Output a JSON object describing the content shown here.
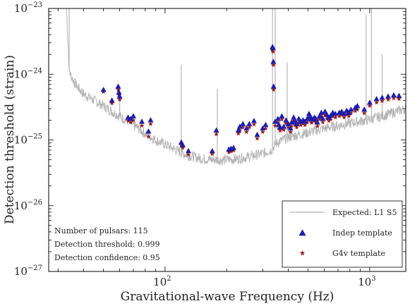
{
  "chart_data": {
    "type": "scatter",
    "title": "",
    "xlabel": "Gravitational-wave Frequency (Hz)",
    "ylabel": "Detection threshold (strain)",
    "x_scale": "log",
    "y_scale": "log",
    "xlim": [
      27,
      1500
    ],
    "ylim": [
      1e-27,
      1e-23
    ],
    "grid": false,
    "legend_position": "bottom-right",
    "x_ticks": [
      {
        "value": 100,
        "base": "10",
        "exp": "2"
      },
      {
        "value": 1000,
        "base": "10",
        "exp": "3"
      }
    ],
    "y_ticks": [
      {
        "value": 1e-27,
        "base": "10",
        "exp": "−27"
      },
      {
        "value": 1e-26,
        "base": "10",
        "exp": "−26"
      },
      {
        "value": 1e-25,
        "base": "10",
        "exp": "−25"
      },
      {
        "value": 1e-24,
        "base": "10",
        "exp": "−24"
      },
      {
        "value": 1e-23,
        "base": "10",
        "exp": "−23"
      }
    ],
    "colors": {
      "expected": "#b5b5b5",
      "indep": "#1f1fbf",
      "g4v": "#a01818"
    },
    "series": [
      {
        "name": "Expected: L1 S5",
        "kind": "line",
        "color": "#b5b5b5",
        "x": [
          33,
          34,
          36,
          38,
          40,
          45,
          50,
          55,
          60,
          70,
          80,
          90,
          100,
          110,
          120,
          130,
          150,
          170,
          200,
          230,
          260,
          300,
          330,
          350,
          400,
          500,
          600,
          700,
          800,
          1000,
          1200,
          1500
        ],
        "y": [
          1e-23,
          1.1e-24,
          7.5e-25,
          6e-25,
          5e-25,
          4e-25,
          3.3e-25,
          2.7e-25,
          2.3e-25,
          1.7e-25,
          1.25e-25,
          1e-25,
          8.5e-26,
          7.4e-26,
          6.4e-26,
          5.8e-26,
          5.2e-26,
          5e-26,
          5e-26,
          5.2e-26,
          5.6e-26,
          6.2e-26,
          7e-26,
          9e-26,
          1.1e-25,
          1.3e-25,
          1.5e-25,
          1.65e-25,
          1.8e-25,
          2.05e-25,
          2.4e-25,
          3e-25
        ]
      },
      {
        "name": "Indep template",
        "kind": "scatter",
        "marker": "triangle",
        "color": "#1f1fbf",
        "x": [
          50,
          55,
          59,
          59.5,
          60,
          66,
          68,
          70,
          77,
          83,
          85,
          120,
          122,
          130,
          170,
          178,
          205,
          210,
          216,
          228,
          232,
          240,
          250,
          258,
          272,
          282,
          300,
          310,
          335,
          337,
          338,
          339,
          345,
          356,
          360,
          365,
          372,
          380,
          390,
          400,
          410,
          415,
          425,
          432,
          440,
          450,
          460,
          472,
          482,
          495,
          505,
          512,
          520,
          536,
          545,
          555,
          568,
          580,
          590,
          605,
          618,
          632,
          645,
          660,
          680,
          710,
          730,
          750,
          772,
          790,
          810,
          850,
          870,
          940,
          1000,
          1080,
          1150,
          1230,
          1310,
          1390
        ],
        "y": [
          5.8e-25,
          4e-25,
          6.5e-25,
          5.3e-25,
          4.6e-25,
          2.2e-25,
          2.1e-25,
          2.3e-25,
          1.9e-25,
          1.35e-25,
          2e-25,
          9.2e-26,
          8.4e-26,
          6.8e-26,
          6.8e-26,
          1.4e-25,
          7.2e-26,
          7.4e-26,
          7.6e-26,
          1.4e-25,
          1.6e-25,
          1.75e-25,
          1.5e-25,
          1.75e-25,
          1.95e-25,
          1.2e-25,
          1.5e-25,
          1.7e-25,
          2.6e-24,
          2.5e-24,
          1.55e-24,
          6.5e-25,
          1.9e-25,
          2.1e-25,
          1.7e-25,
          1.55e-25,
          2.3e-25,
          1.6e-25,
          2e-25,
          1.75e-25,
          1.5e-25,
          1.85e-25,
          2.2e-25,
          1.9e-25,
          1.75e-25,
          2.1e-25,
          1.9e-25,
          2e-25,
          1.9e-25,
          2.1e-25,
          2.5e-25,
          2.3e-25,
          2.05e-25,
          2.2e-25,
          2.1e-25,
          1.85e-25,
          2.3e-25,
          2.6e-25,
          2.1e-25,
          2.7e-25,
          2.4e-25,
          2.2e-25,
          2.35e-25,
          2.6e-25,
          2.5e-25,
          2.6e-25,
          2.7e-25,
          2.5e-25,
          2.8e-25,
          2.6e-25,
          2.9e-25,
          3.1e-25,
          3.3e-25,
          2.9e-25,
          3.7e-25,
          4.2e-25,
          4.4e-25,
          4.6e-25,
          4.8e-25,
          4.7e-25
        ]
      },
      {
        "name": "G4v template",
        "kind": "scatter",
        "marker": "star",
        "color": "#a01818",
        "x": [
          50,
          55,
          59,
          59.5,
          60,
          66,
          68,
          70,
          77,
          83,
          85,
          120,
          122,
          130,
          170,
          178,
          205,
          210,
          216,
          228,
          232,
          240,
          250,
          258,
          272,
          282,
          300,
          310,
          335,
          337,
          338,
          339,
          345,
          356,
          360,
          365,
          372,
          380,
          390,
          400,
          410,
          415,
          425,
          432,
          440,
          450,
          460,
          472,
          482,
          495,
          505,
          512,
          520,
          536,
          545,
          555,
          568,
          580,
          590,
          605,
          618,
          632,
          645,
          660,
          680,
          710,
          730,
          750,
          772,
          790,
          810,
          850,
          870,
          940,
          1000,
          1080,
          1150,
          1230,
          1310,
          1390
        ],
        "y": [
          5.4e-25,
          3.6e-25,
          5.8e-25,
          4.8e-25,
          4.1e-25,
          1.95e-25,
          1.85e-25,
          2e-25,
          1.65e-25,
          1.12e-25,
          1.75e-25,
          8.2e-26,
          7.6e-26,
          6e-26,
          6.1e-26,
          1.22e-25,
          6.5e-26,
          6.7e-26,
          6.9e-26,
          1.25e-25,
          1.4e-25,
          1.55e-25,
          1.32e-25,
          1.55e-25,
          1.72e-25,
          1.05e-25,
          1.32e-25,
          1.5e-25,
          2.3e-24,
          2.2e-24,
          1.38e-24,
          5.8e-25,
          1.65e-25,
          1.85e-25,
          1.5e-25,
          1.38e-25,
          2.05e-25,
          1.42e-25,
          1.78e-25,
          1.55e-25,
          1.32e-25,
          1.62e-25,
          1.95e-25,
          1.68e-25,
          1.55e-25,
          1.85e-25,
          1.68e-25,
          1.78e-25,
          1.68e-25,
          1.85e-25,
          2.2e-25,
          2.05e-25,
          1.82e-25,
          1.95e-25,
          1.85e-25,
          1.62e-25,
          2.05e-25,
          2.3e-25,
          1.85e-25,
          2.4e-25,
          2.1e-25,
          1.95e-25,
          2.05e-25,
          2.3e-25,
          2.2e-25,
          2.3e-25,
          2.4e-25,
          2.2e-25,
          2.45e-25,
          2.3e-25,
          2.55e-25,
          2.75e-25,
          2.9e-25,
          2.55e-25,
          3.3e-25,
          3.7e-25,
          3.9e-25,
          4.1e-25,
          4.3e-25,
          4.2e-25
        ]
      }
    ],
    "annotations": [
      "Number of pulsars: 115",
      "Detection threshold: 0.999",
      "Detection confidence: 0.95"
    ]
  }
}
